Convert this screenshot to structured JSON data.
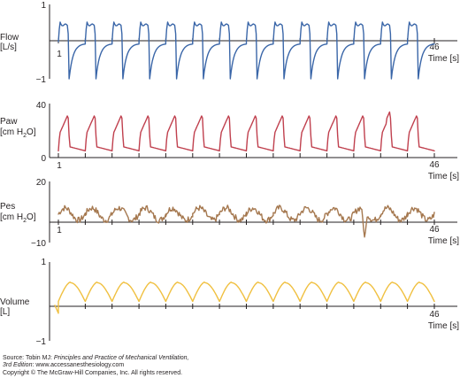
{
  "chart_data": [
    {
      "type": "line",
      "name_lines": [
        "Flow",
        "[L/s]"
      ],
      "unit_sub": "",
      "yticks": [
        "1",
        "−1"
      ],
      "x_start_label": "1",
      "x_end_label": "46",
      "x_title": "Time [s]",
      "x_range": [
        1,
        46
      ],
      "ylim": [
        -1,
        1
      ],
      "color": "#3a66a8",
      "waveform": "flow",
      "breaths": 14
    },
    {
      "type": "line",
      "name_lines": [
        "Paw",
        "[cm H"
      ],
      "unit_sub": "2",
      "unit_tail": "O]",
      "yticks": [
        "40",
        "0"
      ],
      "x_start_label": "1",
      "x_end_label": "46",
      "x_title": "Time [s]",
      "x_range": [
        1,
        46
      ],
      "ylim": [
        0,
        40
      ],
      "color": "#c0404e",
      "waveform": "paw",
      "breaths": 14
    },
    {
      "type": "line",
      "name_lines": [
        "Pes",
        "[cm H"
      ],
      "unit_sub": "2",
      "unit_tail": "O]",
      "yticks": [
        "20",
        "−10"
      ],
      "x_start_label": "1",
      "x_end_label": "46",
      "x_title": "Time [s]",
      "x_range": [
        1,
        46
      ],
      "ylim": [
        -10,
        20
      ],
      "color": "#a5784f",
      "waveform": "pes",
      "breaths": 14
    },
    {
      "type": "line",
      "name_lines": [
        "Volume",
        "[L]"
      ],
      "unit_sub": "",
      "yticks": [
        "1",
        "−1"
      ],
      "x_start_label": "1",
      "x_end_label": "46",
      "x_title": "Time [s]",
      "x_range": [
        1,
        46
      ],
      "ylim": [
        -1,
        1
      ],
      "color": "#f0c040",
      "waveform": "volume",
      "breaths": 14
    }
  ],
  "footer": {
    "source_prefix": "Source: Tobin MJ: ",
    "source_title": "Principles and Practice of Mechanical Ventilation,",
    "edition": "3rd Edition",
    "site": ": www.accessanesthesiology.com",
    "copyright": "Copyright © The McGraw-Hill Companies, Inc. All rights reserved."
  }
}
